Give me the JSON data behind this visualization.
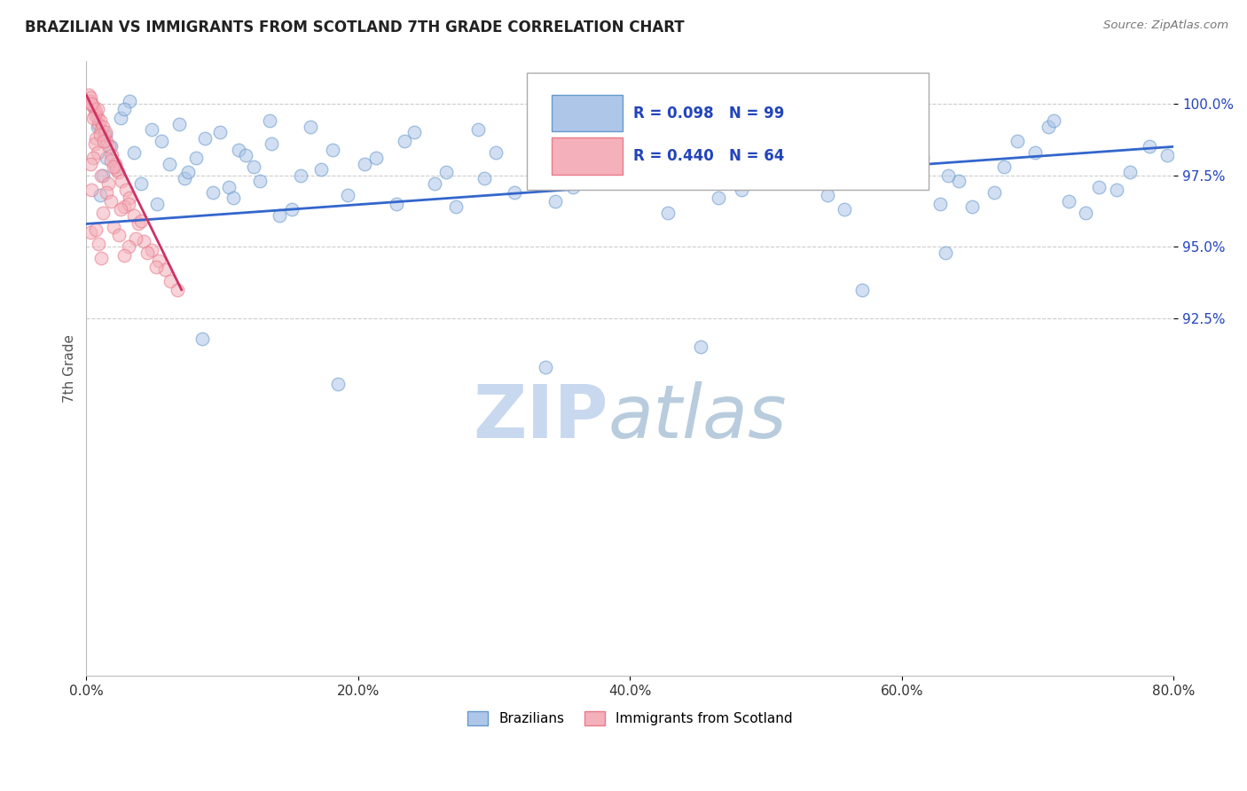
{
  "title": "BRAZILIAN VS IMMIGRANTS FROM SCOTLAND 7TH GRADE CORRELATION CHART",
  "source": "Source: ZipAtlas.com",
  "ylabel": "7th Grade",
  "xlim": [
    0.0,
    80.0
  ],
  "ylim": [
    80.0,
    101.5
  ],
  "xtick_labels": [
    "0.0%",
    "20.0%",
    "40.0%",
    "60.0%",
    "80.0%"
  ],
  "xtick_values": [
    0.0,
    20.0,
    40.0,
    60.0,
    80.0
  ],
  "ytick_labels": [
    "92.5%",
    "95.0%",
    "97.5%",
    "100.0%"
  ],
  "ytick_values": [
    92.5,
    95.0,
    97.5,
    100.0
  ],
  "bottom_legend": [
    {
      "label": "Brazilians",
      "color": "#aec6e8",
      "edge": "#6699cc"
    },
    {
      "label": "Immigrants from Scotland",
      "color": "#f4b0bb",
      "edge": "#e87a8a"
    }
  ],
  "blue_scatter_x": [
    1.0,
    1.2,
    1.5,
    0.8,
    2.1,
    1.8,
    2.5,
    3.2,
    2.8,
    1.4,
    4.0,
    3.5,
    5.2,
    4.8,
    6.1,
    5.5,
    7.2,
    6.8,
    8.1,
    7.5,
    9.3,
    8.7,
    10.5,
    9.8,
    11.2,
    10.8,
    12.3,
    11.7,
    13.5,
    12.8,
    14.2,
    13.6,
    15.8,
    15.1,
    16.5,
    17.3,
    18.1,
    19.2,
    20.5,
    21.3,
    22.8,
    24.1,
    25.6,
    23.4,
    27.2,
    26.5,
    28.8,
    30.1,
    29.3,
    31.5,
    33.2,
    35.8,
    34.5,
    37.1,
    36.8,
    38.5,
    40.2,
    42.8,
    41.5,
    44.1,
    46.5,
    43.8,
    48.2,
    45.6,
    50.3,
    52.1,
    47.8,
    54.5,
    51.2,
    56.8,
    53.5,
    58.2,
    55.8,
    60.5,
    57.3,
    62.8,
    59.6,
    64.2,
    61.5,
    66.8,
    63.4,
    68.5,
    65.2,
    70.8,
    67.5,
    72.3,
    69.8,
    74.5,
    71.2,
    76.8,
    73.5,
    78.2,
    75.8,
    63.2,
    57.1,
    45.2,
    33.8,
    18.5,
    8.5,
    79.5
  ],
  "blue_scatter_y": [
    96.8,
    97.5,
    98.1,
    99.2,
    97.8,
    98.5,
    99.5,
    100.1,
    99.8,
    98.9,
    97.2,
    98.3,
    96.5,
    99.1,
    97.9,
    98.7,
    97.4,
    99.3,
    98.1,
    97.6,
    96.9,
    98.8,
    97.1,
    99.0,
    98.4,
    96.7,
    97.8,
    98.2,
    99.4,
    97.3,
    96.1,
    98.6,
    97.5,
    96.3,
    99.2,
    97.7,
    98.4,
    96.8,
    97.9,
    98.1,
    96.5,
    99.0,
    97.2,
    98.7,
    96.4,
    97.6,
    99.1,
    98.3,
    97.4,
    96.9,
    98.5,
    97.1,
    96.6,
    99.3,
    97.8,
    98.0,
    97.3,
    96.2,
    98.9,
    97.5,
    96.7,
    98.2,
    97.0,
    99.5,
    97.6,
    98.4,
    97.2,
    96.8,
    99.1,
    97.9,
    98.6,
    97.4,
    96.3,
    98.8,
    97.7,
    96.5,
    99.0,
    97.3,
    98.1,
    96.9,
    97.5,
    98.7,
    96.4,
    99.2,
    97.8,
    96.6,
    98.3,
    97.1,
    99.4,
    97.6,
    96.2,
    98.5,
    97.0,
    94.8,
    93.5,
    91.5,
    90.8,
    90.2,
    91.8,
    98.2
  ],
  "pink_scatter_x": [
    0.2,
    0.3,
    0.5,
    0.4,
    0.7,
    0.6,
    0.8,
    0.9,
    1.1,
    1.0,
    0.3,
    1.3,
    0.6,
    1.5,
    0.8,
    0.4,
    1.7,
    0.5,
    1.9,
    1.2,
    0.7,
    2.1,
    1.4,
    0.6,
    2.3,
    1.0,
    2.6,
    0.8,
    1.8,
    1.3,
    2.9,
    0.5,
    2.2,
    3.2,
    1.1,
    0.3,
    2.8,
    1.6,
    3.5,
    2.0,
    0.4,
    3.8,
    1.5,
    3.1,
    0.3,
    4.2,
    1.8,
    4.0,
    1.2,
    2.5,
    4.8,
    0.7,
    3.6,
    2.0,
    5.3,
    0.9,
    4.5,
    3.1,
    5.8,
    2.4,
    6.2,
    1.1,
    5.1,
    2.8,
    6.7
  ],
  "pink_scatter_y": [
    100.3,
    100.1,
    99.9,
    100.0,
    99.7,
    99.8,
    99.5,
    99.3,
    99.1,
    99.4,
    100.2,
    98.9,
    99.6,
    98.7,
    99.8,
    100.0,
    98.5,
    99.5,
    98.2,
    99.2,
    98.8,
    97.9,
    99.0,
    98.6,
    97.6,
    98.9,
    97.3,
    98.3,
    98.0,
    98.7,
    97.0,
    98.1,
    97.7,
    96.7,
    97.5,
    97.9,
    96.4,
    97.2,
    96.1,
    97.8,
    97.0,
    95.8,
    96.9,
    96.5,
    95.5,
    95.2,
    96.6,
    95.9,
    96.2,
    96.3,
    94.9,
    95.6,
    95.3,
    95.7,
    94.5,
    95.1,
    94.8,
    95.0,
    94.2,
    95.4,
    93.8,
    94.6,
    94.3,
    94.7,
    93.5
  ],
  "blue_line_x": [
    0.0,
    80.0
  ],
  "blue_line_y": [
    95.8,
    98.5
  ],
  "pink_line_x": [
    0.0,
    7.0
  ],
  "pink_line_y": [
    100.3,
    93.5
  ],
  "watermark_zip": "ZIP",
  "watermark_atlas": "atlas",
  "watermark_color_zip": "#c8d8ee",
  "watermark_color_atlas": "#b8ccdd",
  "dot_size": 110,
  "dot_alpha": 0.55,
  "blue_color": "#aec6e8",
  "blue_edge": "#6699cc",
  "pink_color": "#f4b0bb",
  "pink_edge": "#e87a8a",
  "line_blue_color": "#3366cc",
  "line_pink_color": "#cc3366",
  "grid_color": "#cccccc",
  "title_color": "#222222",
  "source_color": "#777777",
  "legend_text_color": "#2244bb",
  "axis_label_color": "#555555",
  "axis_tick_color": "#333333",
  "ytick_right_color": "#2244bb"
}
